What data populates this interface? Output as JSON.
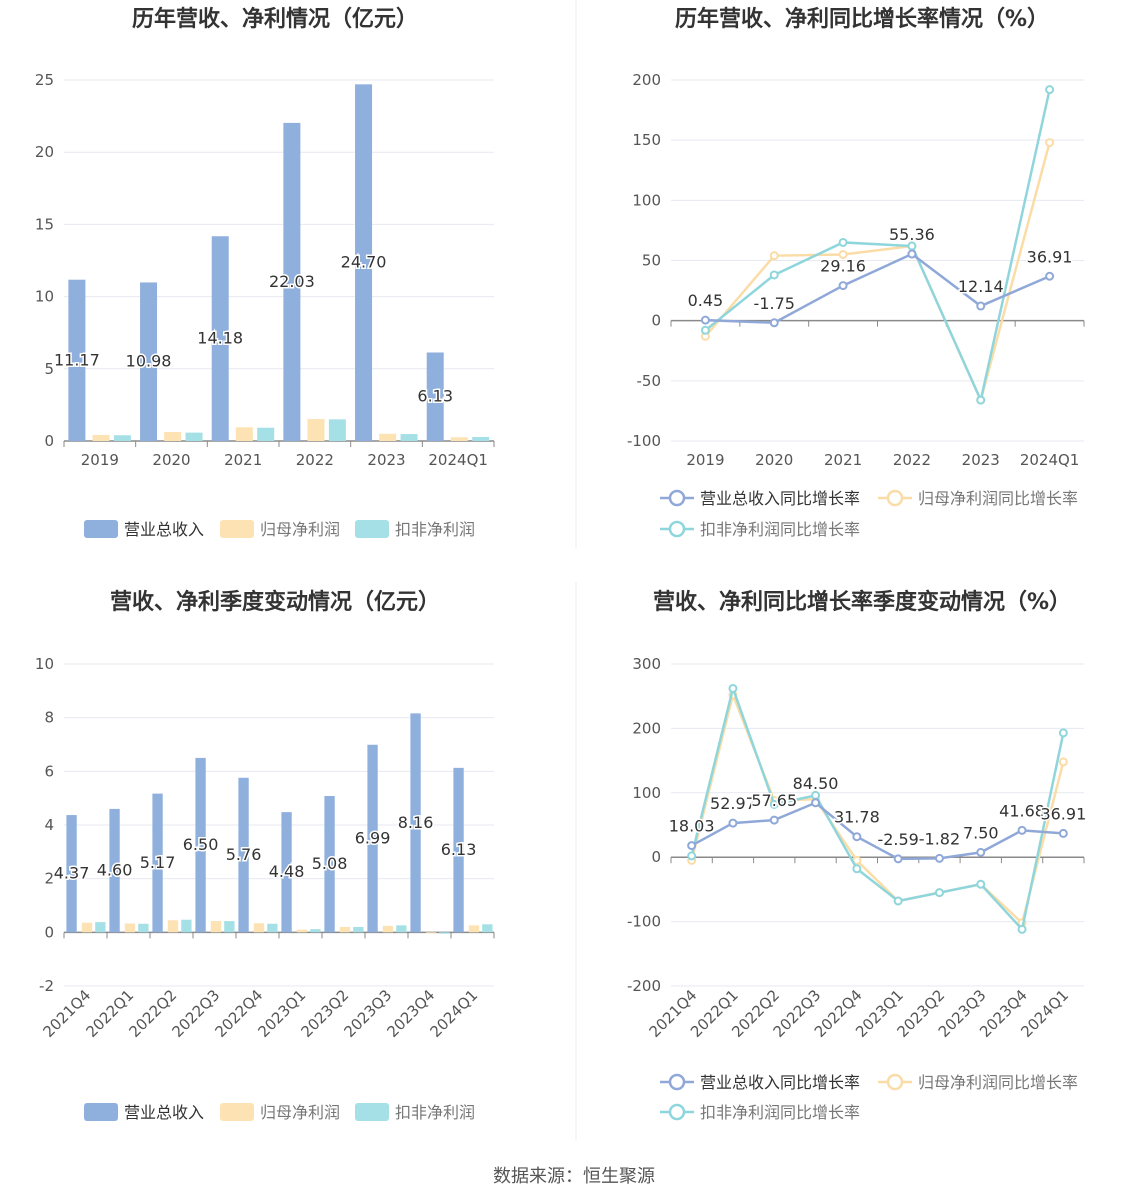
{
  "colors": {
    "revenue": "#8fb0dd",
    "parent_profit": "#fde3b3",
    "deducted_profit": "#a5e0e6",
    "revenue_line": "#8fa8d8",
    "parent_line": "#fbdca6",
    "deducted_line": "#8fd6dc",
    "grid": "#e6e9f0",
    "axis": "#8a8a8a",
    "text": "#555555",
    "title": "#333333"
  },
  "source": "数据来源：恒生聚源",
  "chart_data": [
    {
      "id": "annual-amounts",
      "type": "bar",
      "title": "历年营收、净利情况（亿元）",
      "categories": [
        "2019",
        "2020",
        "2021",
        "2022",
        "2023",
        "2024Q1"
      ],
      "ylim": [
        0,
        25
      ],
      "yticks": [
        0,
        5,
        10,
        15,
        20,
        25
      ],
      "grid": true,
      "legend_position": "bottom",
      "series": [
        {
          "name": "营业总收入",
          "values": [
            11.17,
            10.98,
            14.18,
            22.03,
            24.7,
            6.13
          ],
          "labels": [
            "11.17",
            "10.98",
            "14.18",
            "22.03",
            "24.70",
            "6.13"
          ]
        },
        {
          "name": "归母净利润",
          "values": [
            0.42,
            0.62,
            0.95,
            1.52,
            0.5,
            0.26
          ]
        },
        {
          "name": "扣非净利润",
          "values": [
            0.4,
            0.58,
            0.92,
            1.5,
            0.48,
            0.28
          ]
        }
      ]
    },
    {
      "id": "annual-growth",
      "type": "line",
      "title": "历年营收、净利同比增长率情况（%）",
      "categories": [
        "2019",
        "2020",
        "2021",
        "2022",
        "2023",
        "2024Q1"
      ],
      "ylim": [
        -100,
        200
      ],
      "yticks": [
        -100,
        -50,
        0,
        50,
        100,
        150,
        200
      ],
      "grid": true,
      "legend_position": "bottom",
      "series": [
        {
          "name": "营业总收入同比增长率",
          "values": [
            0.45,
            -1.75,
            29.16,
            55.36,
            12.14,
            36.91
          ],
          "labels": [
            "0.45",
            "-1.75",
            "29.16",
            "55.36",
            "12.14",
            "36.91"
          ]
        },
        {
          "name": "归母净利润同比增长率",
          "values": [
            -13,
            54,
            55,
            62,
            -66,
            148
          ]
        },
        {
          "name": "扣非净利润同比增长率",
          "values": [
            -8,
            38,
            65,
            62,
            -66,
            192
          ]
        }
      ]
    },
    {
      "id": "quarterly-amounts",
      "type": "bar",
      "title": "营收、净利季度变动情况（亿元）",
      "categories": [
        "2021Q4",
        "2022Q1",
        "2022Q2",
        "2022Q3",
        "2022Q4",
        "2023Q1",
        "2023Q2",
        "2023Q3",
        "2023Q4",
        "2024Q1"
      ],
      "ylim": [
        -2,
        10
      ],
      "yticks": [
        -2,
        0,
        2,
        4,
        6,
        8,
        10
      ],
      "grid": true,
      "legend_position": "bottom",
      "series": [
        {
          "name": "营业总收入",
          "values": [
            4.37,
            4.6,
            5.17,
            6.5,
            5.76,
            4.48,
            5.08,
            6.99,
            8.16,
            6.13
          ],
          "labels": [
            "4.37",
            "4.60",
            "5.17",
            "6.50",
            "5.76",
            "4.48",
            "5.08",
            "6.99",
            "8.16",
            "6.13"
          ]
        },
        {
          "name": "归母净利润",
          "values": [
            0.36,
            0.33,
            0.45,
            0.42,
            0.34,
            0.1,
            0.2,
            0.24,
            -0.03,
            0.26
          ]
        },
        {
          "name": "扣非净利润",
          "values": [
            0.38,
            0.32,
            0.47,
            0.42,
            0.32,
            0.12,
            0.2,
            0.26,
            -0.05,
            0.3
          ]
        }
      ]
    },
    {
      "id": "quarterly-growth",
      "type": "line",
      "title": "营收、净利同比增长率季度变动情况（%）",
      "categories": [
        "2021Q4",
        "2022Q1",
        "2022Q2",
        "2022Q3",
        "2022Q4",
        "2023Q1",
        "2023Q2",
        "2023Q3",
        "2023Q4",
        "2024Q1"
      ],
      "ylim": [
        -200,
        300
      ],
      "yticks": [
        -200,
        -100,
        0,
        100,
        200,
        300
      ],
      "grid": true,
      "legend_position": "bottom",
      "series": [
        {
          "name": "营业总收入同比增长率",
          "values": [
            18.03,
            52.97,
            57.65,
            84.5,
            31.78,
            -2.59,
            -1.82,
            7.5,
            41.68,
            36.91
          ],
          "labels": [
            "18.03",
            "52.97",
            "57.65",
            "84.50",
            "31.78",
            "-2.59",
            "-1.82",
            "7.50",
            "41.68",
            "36.91"
          ]
        },
        {
          "name": "归母净利润同比增长率",
          "values": [
            -5,
            252,
            88,
            90,
            -5,
            -68,
            -55,
            -42,
            -102,
            148
          ]
        },
        {
          "name": "扣非净利润同比增长率",
          "values": [
            2,
            262,
            82,
            96,
            -18,
            -68,
            -55,
            -42,
            -112,
            193
          ]
        }
      ]
    }
  ]
}
